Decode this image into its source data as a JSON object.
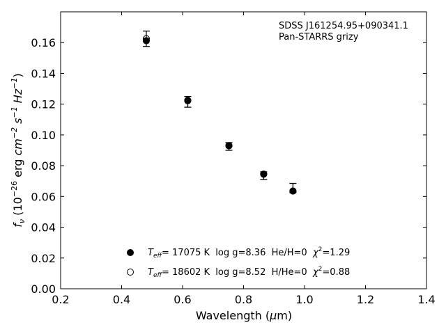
{
  "chart_data": {
    "type": "scatter",
    "xlabel_pre": "Wavelength (",
    "xlabel_mu": "μ",
    "xlabel_post": "m)",
    "ylabel": {
      "f": "f",
      "nu": "ν",
      "open": " (10",
      "exp1": "−26",
      "erg": " erg ",
      "cm": "cm",
      "exp2": "−2",
      "s": " s",
      "exp3": "−1",
      "hz": " Hz",
      "exp4": "−1",
      "close": ")"
    },
    "xlim": [
      0.2,
      1.4
    ],
    "ylim": [
      0.0,
      0.18
    ],
    "xticks": [
      "0.2",
      "0.4",
      "0.6",
      "0.8",
      "1.0",
      "1.2",
      "1.4"
    ],
    "yticks": [
      "0.00",
      "0.02",
      "0.04",
      "0.06",
      "0.08",
      "0.10",
      "0.12",
      "0.14",
      "0.16"
    ],
    "annotation": [
      "SDSS J161254.95+090341.1",
      "Pan-STARRS grizy"
    ],
    "observed": {
      "x": [
        0.481,
        0.617,
        0.752,
        0.866,
        0.962
      ],
      "y": [
        0.1625,
        0.1215,
        0.0925,
        0.0735,
        0.0655
      ],
      "yerr": [
        0.005,
        0.0035,
        0.0025,
        0.0025,
        0.003
      ]
    },
    "series": [
      {
        "name": "T_eff = 17075 K  log g=8.36  He/H=0  χ²=1.29",
        "marker": "filled-circle",
        "x": [
          0.481,
          0.617,
          0.752,
          0.866,
          0.962
        ],
        "y": [
          0.1612,
          0.1222,
          0.093,
          0.0745,
          0.0635
        ]
      },
      {
        "name": "T_eff = 18602 K  log g=8.52  H/He=0  χ²=0.88",
        "marker": "open-circle",
        "x": [
          0.481,
          0.617,
          0.752,
          0.866,
          0.962
        ],
        "y": [
          0.1625,
          0.1225,
          0.093,
          0.0745,
          0.0635
        ]
      }
    ],
    "legend": {
      "placement": "lower-center",
      "entries": [
        {
          "T": "T",
          "eff": "eff",
          "rest": "= 17075 K  log g=8.36  He/H=0  ",
          "chi": "χ",
          "sq": "2",
          "tail": "=1.29"
        },
        {
          "T": "T",
          "eff": "eff",
          "rest": "= 18602 K  log g=8.52  H/He=0  ",
          "chi": "χ",
          "sq": "2",
          "tail": "=0.88"
        }
      ]
    },
    "colors": {
      "marker": "#000000",
      "axes": "#000000"
    }
  }
}
